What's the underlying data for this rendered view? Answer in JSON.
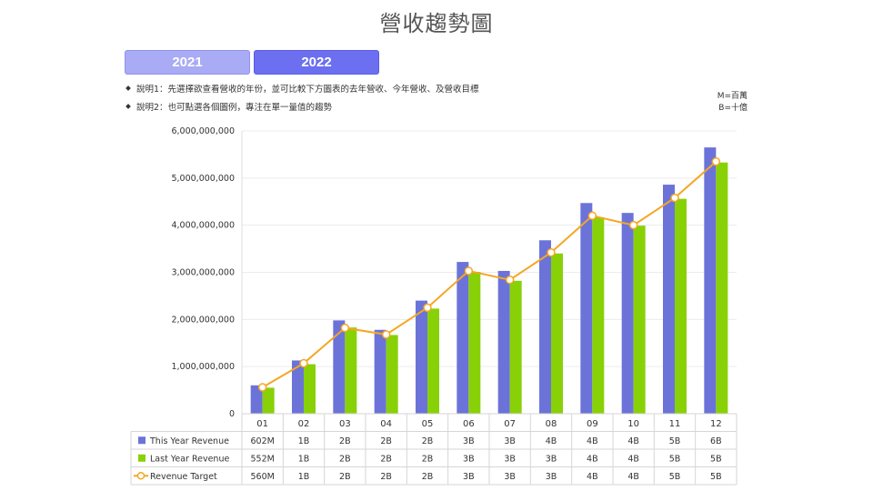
{
  "page": {
    "title": "營收趨勢圖",
    "year_tabs": [
      {
        "label": "2021",
        "active": false
      },
      {
        "label": "2022",
        "active": true
      }
    ],
    "notes": [
      "說明1：先選擇欲查看營收的年份，並可比較下方圖表的去年營收、今年營收、及營收目標",
      "說明2：也可點選各個圖例，專注在單一量值的趨勢"
    ],
    "units": [
      "M=百萬",
      "B=十億"
    ]
  },
  "colors": {
    "this_year": "#6b73d9",
    "last_year": "#88d106",
    "target": "#f5a623",
    "tab_active": "#6c6ff0",
    "tab_inactive": "#a9abf5"
  },
  "chart_data": {
    "type": "bar",
    "categories": [
      "01",
      "02",
      "03",
      "04",
      "05",
      "06",
      "07",
      "08",
      "09",
      "10",
      "11",
      "12"
    ],
    "ylim": [
      0,
      6000000000
    ],
    "yticks": [
      0,
      1000000000,
      2000000000,
      3000000000,
      4000000000,
      5000000000,
      6000000000
    ],
    "ytick_labels": [
      "0",
      "1,000,000,000",
      "2,000,000,000",
      "3,000,000,000",
      "4,000,000,000",
      "5,000,000,000",
      "6,000,000,000"
    ],
    "grid": true,
    "series": [
      {
        "name": "This Year Revenue",
        "type": "bar",
        "color": "#6b73d9",
        "values": [
          602000000,
          1130000000,
          1980000000,
          1780000000,
          2400000000,
          3220000000,
          3030000000,
          3680000000,
          4470000000,
          4260000000,
          4860000000,
          5650000000
        ],
        "table_labels": [
          "602M",
          "1B",
          "2B",
          "2B",
          "2B",
          "3B",
          "3B",
          "4B",
          "4B",
          "4B",
          "5B",
          "6B"
        ]
      },
      {
        "name": "Last Year Revenue",
        "type": "bar",
        "color": "#88d106",
        "values": [
          552000000,
          1050000000,
          1830000000,
          1670000000,
          2230000000,
          3010000000,
          2820000000,
          3400000000,
          4170000000,
          3990000000,
          4560000000,
          5330000000
        ],
        "table_labels": [
          "552M",
          "1B",
          "2B",
          "2B",
          "2B",
          "3B",
          "3B",
          "3B",
          "4B",
          "4B",
          "5B",
          "5B"
        ]
      },
      {
        "name": "Revenue Target",
        "type": "line",
        "color": "#f5a623",
        "values": [
          560000000,
          1070000000,
          1820000000,
          1680000000,
          2250000000,
          3030000000,
          2840000000,
          3420000000,
          4200000000,
          4000000000,
          4580000000,
          5350000000
        ],
        "table_labels": [
          "560M",
          "1B",
          "2B",
          "2B",
          "2B",
          "3B",
          "3B",
          "3B",
          "4B",
          "4B",
          "5B",
          "5B"
        ]
      }
    ]
  }
}
